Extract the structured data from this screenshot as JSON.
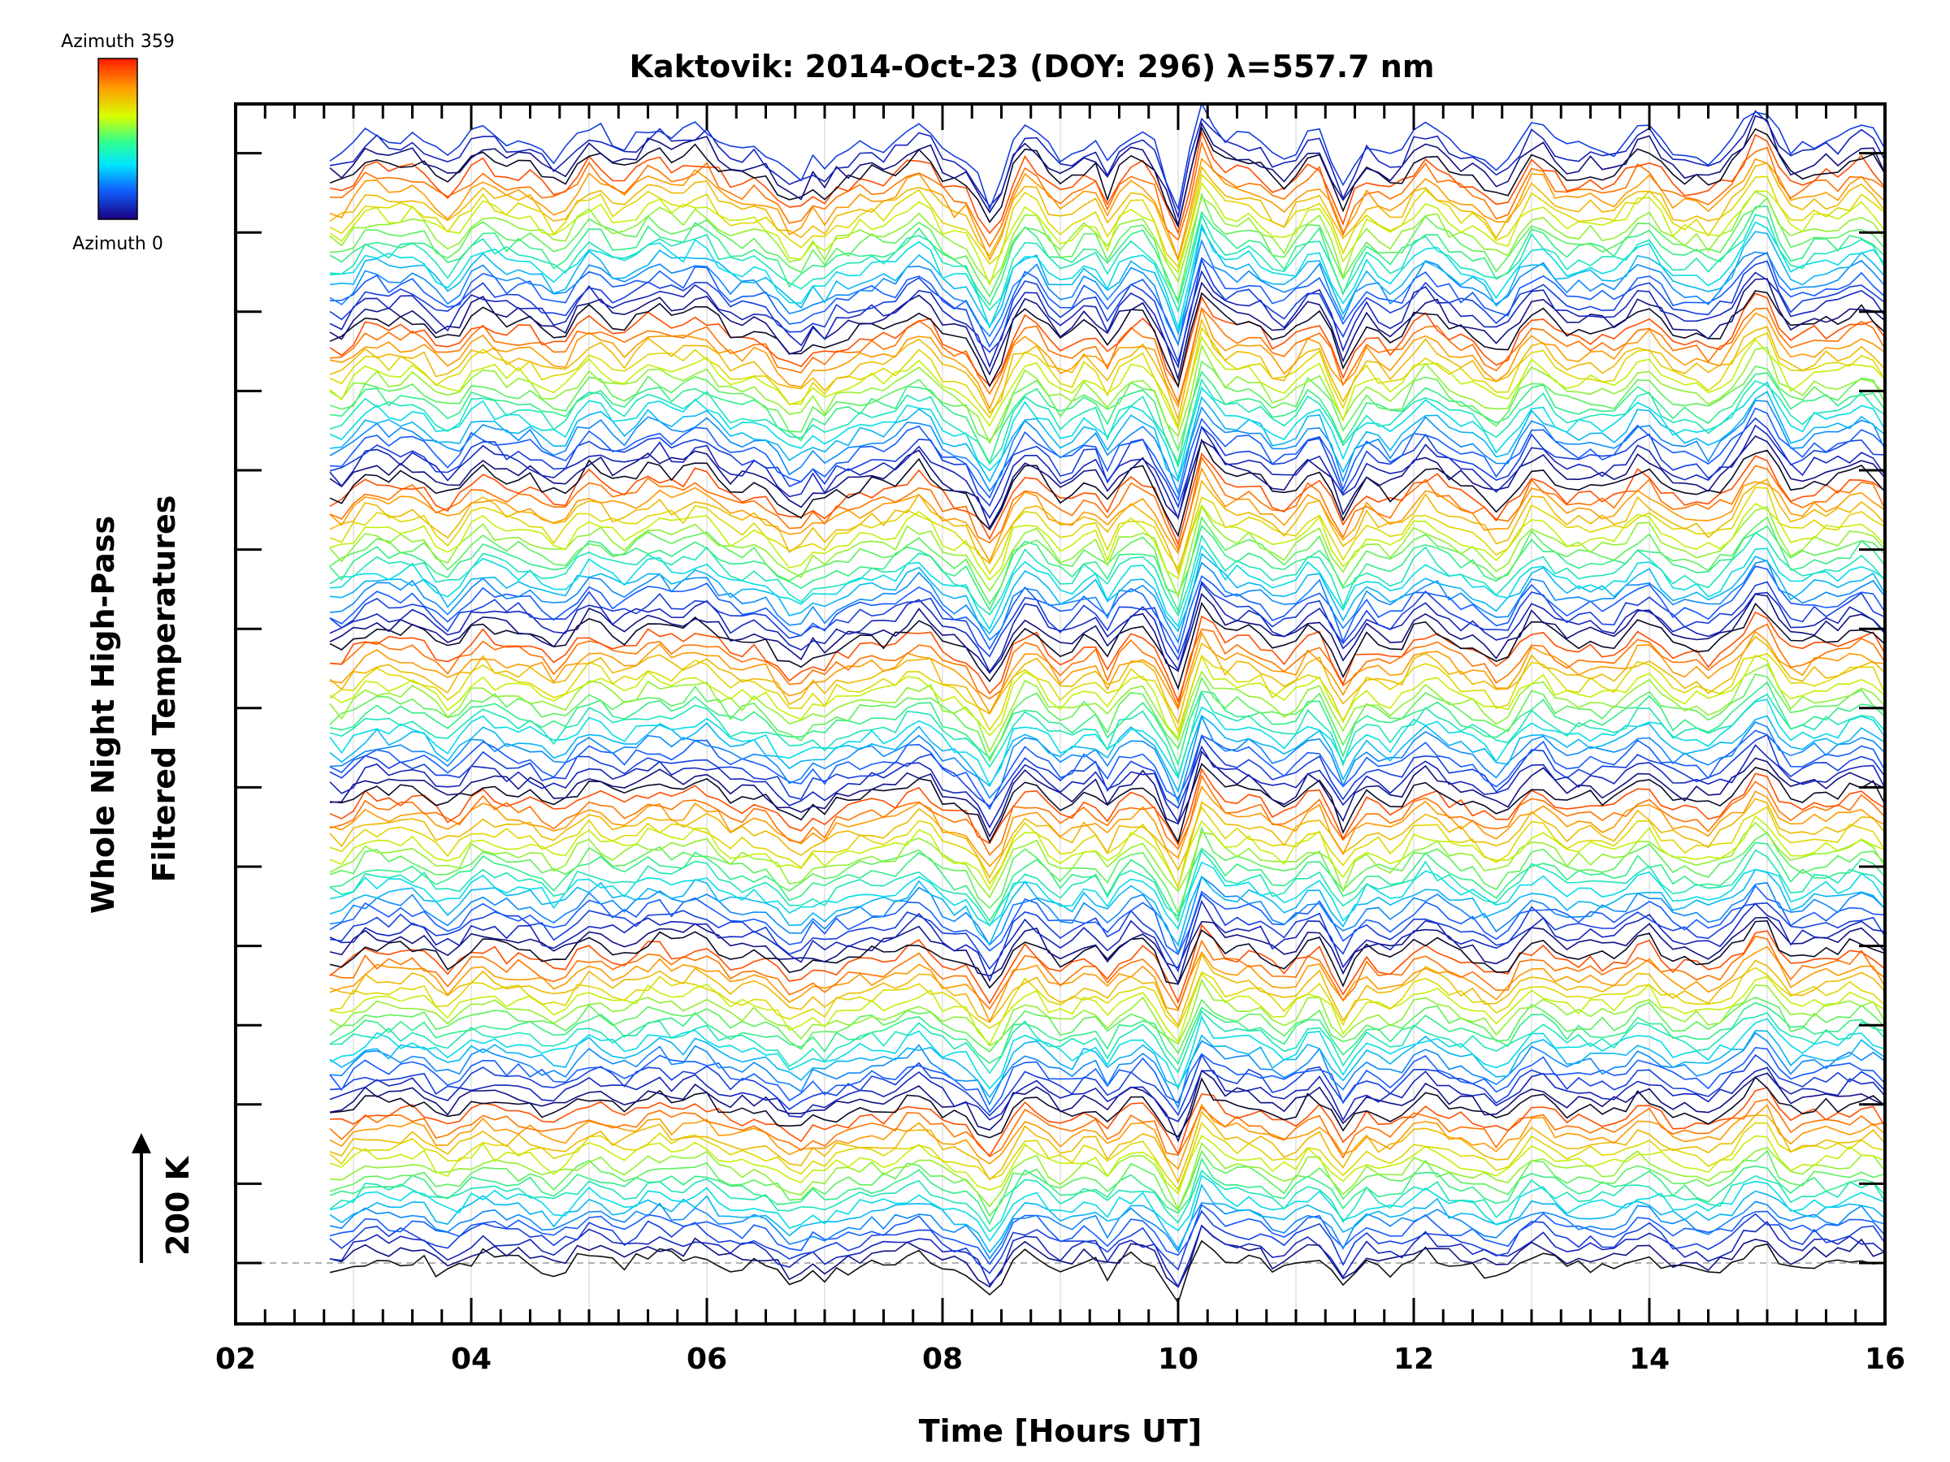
{
  "chart_data": {
    "type": "line",
    "title": "Kaktovik: 2014-Oct-23 (DOY: 296) λ=557.7 nm",
    "xlabel": "Time [Hours UT]",
    "ylabel_line1": "Whole Night High-Pass",
    "ylabel_line2": "Filtered Temperatures",
    "scale_label": "200 K",
    "xlim": [
      2,
      16
    ],
    "data_start_hour": 2.8,
    "x_ticks": [
      "02",
      "04",
      "06",
      "08",
      "10",
      "12",
      "14",
      "16"
    ],
    "colorbar": {
      "top_label": "Azimuth  359",
      "bottom_label": "Azimuth  0",
      "colors": [
        "#ff0000",
        "#ff8800",
        "#ffff00",
        "#00ff88",
        "#00ffff",
        "#0088ff",
        "#0000ff",
        "#000044"
      ]
    },
    "series_count": 130,
    "stack_groups": 7,
    "per_group": 18,
    "grid": true
  }
}
